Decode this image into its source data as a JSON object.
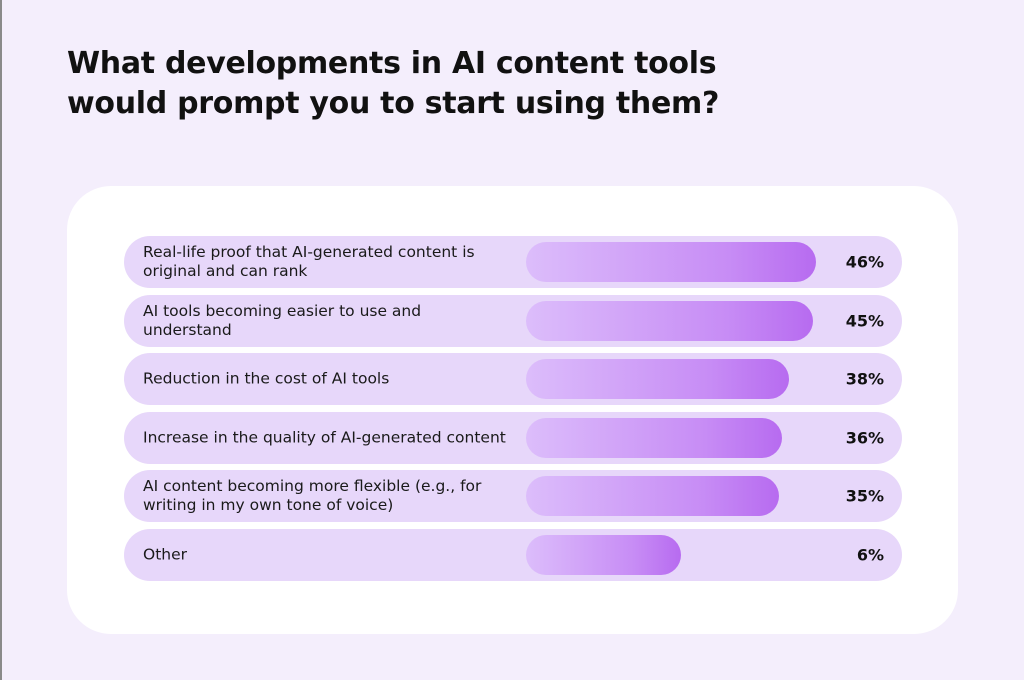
{
  "title": "What developments in AI content tools would prompt you to start using them?",
  "colors": {
    "background": "#f4eefc",
    "card": "#ffffff",
    "row": "#e7d7fa",
    "bar_start": "#dcbdfb",
    "bar_end": "#b76bf0"
  },
  "chart_data": {
    "type": "bar",
    "orientation": "horizontal",
    "title": "What developments in AI content tools would prompt you to start using them?",
    "categories": [
      "Real-life proof that AI-generated content is original and can rank",
      "AI tools becoming easier to use and understand",
      "Reduction in the cost of AI tools",
      "Increase in the quality of AI-generated content",
      "AI content becoming more flexible (e.g., for writing in my own tone of voice)",
      "Other"
    ],
    "values": [
      46,
      45,
      38,
      36,
      35,
      6
    ],
    "value_labels": [
      "46%",
      "45%",
      "38%",
      "36%",
      "35%",
      "6%"
    ],
    "unit": "%",
    "grid": false,
    "legend": "none"
  }
}
